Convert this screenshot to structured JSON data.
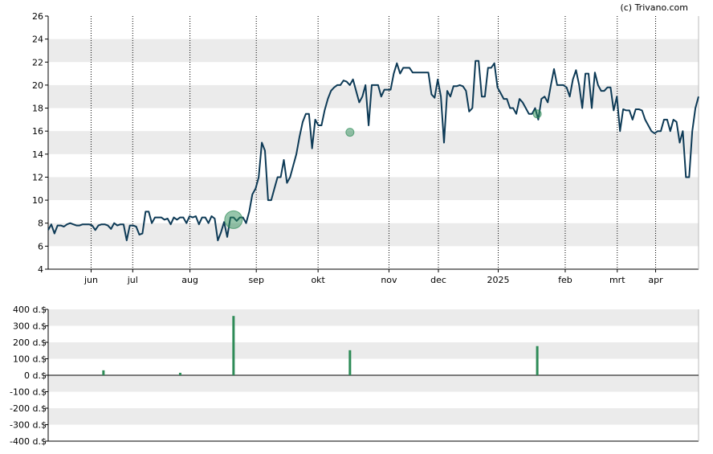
{
  "credit": "(c) Trivano.com",
  "colors": {
    "price_line": "#0d3a56",
    "band": "#ebebeb",
    "marker": "#2e8b57",
    "volume_bar": "#2e8b57",
    "axis": "#000000"
  },
  "chart_data": [
    {
      "type": "line",
      "grid": "alternating horizontal bands, dotted vertical month lines",
      "ylim": [
        4,
        26
      ],
      "y_ticks": [
        "4",
        "6",
        "8",
        "10",
        "12",
        "14",
        "16",
        "18",
        "20",
        "22",
        "24",
        "26"
      ],
      "x_ticks": [
        "jun",
        "jul",
        "aug",
        "sep",
        "okt",
        "nov",
        "dec",
        "2025",
        "feb",
        "mrt",
        "apr"
      ],
      "x_tick_pos": [
        0.066,
        0.13,
        0.218,
        0.32,
        0.415,
        0.524,
        0.6,
        0.692,
        0.795,
        0.875,
        0.934
      ],
      "series": [
        {
          "values": [
            7.4,
            7.9,
            7.1,
            7.8,
            7.8,
            7.7,
            7.9,
            8.0,
            7.9,
            7.8,
            7.8,
            7.9,
            7.9,
            7.9,
            7.8,
            7.4,
            7.8,
            7.9,
            7.9,
            7.8,
            7.5,
            8.0,
            7.8,
            7.9,
            7.9,
            6.5,
            7.8,
            7.8,
            7.7,
            7.0,
            7.1,
            9.0,
            9.0,
            8.0,
            8.5,
            8.5,
            8.5,
            8.3,
            8.4,
            7.9,
            8.5,
            8.3,
            8.5,
            8.5,
            8.0,
            8.6,
            8.5,
            8.6,
            7.9,
            8.5,
            8.5,
            8.0,
            8.6,
            8.4,
            6.5,
            7.2,
            8.1,
            6.8,
            8.5,
            8.5,
            8.2,
            8.5,
            8.5,
            8.0,
            9.0,
            10.5,
            11.0,
            12.0,
            15.0,
            14.3,
            10.0,
            10.0,
            11.0,
            12.0,
            12.0,
            13.5,
            11.5,
            12.0,
            13.0,
            14.0,
            15.5,
            16.8,
            17.5,
            17.5,
            14.5,
            17.0,
            16.5,
            16.5,
            17.8,
            18.8,
            19.5,
            19.8,
            20.0,
            20.0,
            20.4,
            20.3,
            20.0,
            20.5,
            19.5,
            18.5,
            19.0,
            20.0,
            16.5,
            20.0,
            20.0,
            20.0,
            19.0,
            19.6,
            19.6,
            19.6,
            21.0,
            21.9,
            21.0,
            21.5,
            21.5,
            21.5,
            21.1,
            21.1,
            21.1,
            21.1,
            21.1,
            21.1,
            19.2,
            18.9,
            20.5,
            19.0,
            15.0,
            19.5,
            19.0,
            19.9,
            19.9,
            20.0,
            19.9,
            19.5,
            17.7,
            18.0,
            22.1,
            22.1,
            19.0,
            19.0,
            21.5,
            21.5,
            21.9,
            19.8,
            19.3,
            18.8,
            18.8,
            18.0,
            18.0,
            17.5,
            18.8,
            18.5,
            18.0,
            17.5,
            17.5,
            18.0,
            17.0,
            18.8,
            19.0,
            18.5,
            20.0,
            21.4,
            20.0,
            20.0,
            20.0,
            19.8,
            19.0,
            20.5,
            21.3,
            20.0,
            18.0,
            21.0,
            21.0,
            18.0,
            21.1,
            20.0,
            19.5,
            19.5,
            19.8,
            19.8,
            17.8,
            19.0,
            16.0,
            17.9,
            17.8,
            17.8,
            17.0,
            17.9,
            17.9,
            17.8,
            17.0,
            16.5,
            16.0,
            15.8,
            16.0,
            16.0,
            17.0,
            17.0,
            16.0,
            17.0,
            16.8,
            15.0,
            16.0,
            12.0,
            12.0,
            16.0,
            18.0,
            19.0
          ]
        }
      ],
      "markers": [
        {
          "x_pos": 0.285,
          "value": 8.3,
          "size": "large"
        },
        {
          "x_pos": 0.464,
          "value": 15.9,
          "size": "small"
        },
        {
          "x_pos": 0.752,
          "value": 17.5,
          "size": "small"
        }
      ]
    },
    {
      "type": "bar",
      "grid": "alternating horizontal bands",
      "ylim": [
        -400,
        400
      ],
      "y_ticks": [
        "400 d.$",
        "300 d.$",
        "200 d.$",
        "100 d.$",
        "0 d.$",
        "-100 d.$",
        "-200 d.$",
        "-300 d.$",
        "-400 d.$"
      ],
      "bars": [
        {
          "x_pos": 0.085,
          "value": 30
        },
        {
          "x_pos": 0.203,
          "value": 15
        },
        {
          "x_pos": 0.285,
          "value": 360
        },
        {
          "x_pos": 0.464,
          "value": 152
        },
        {
          "x_pos": 0.752,
          "value": 177
        }
      ]
    }
  ]
}
